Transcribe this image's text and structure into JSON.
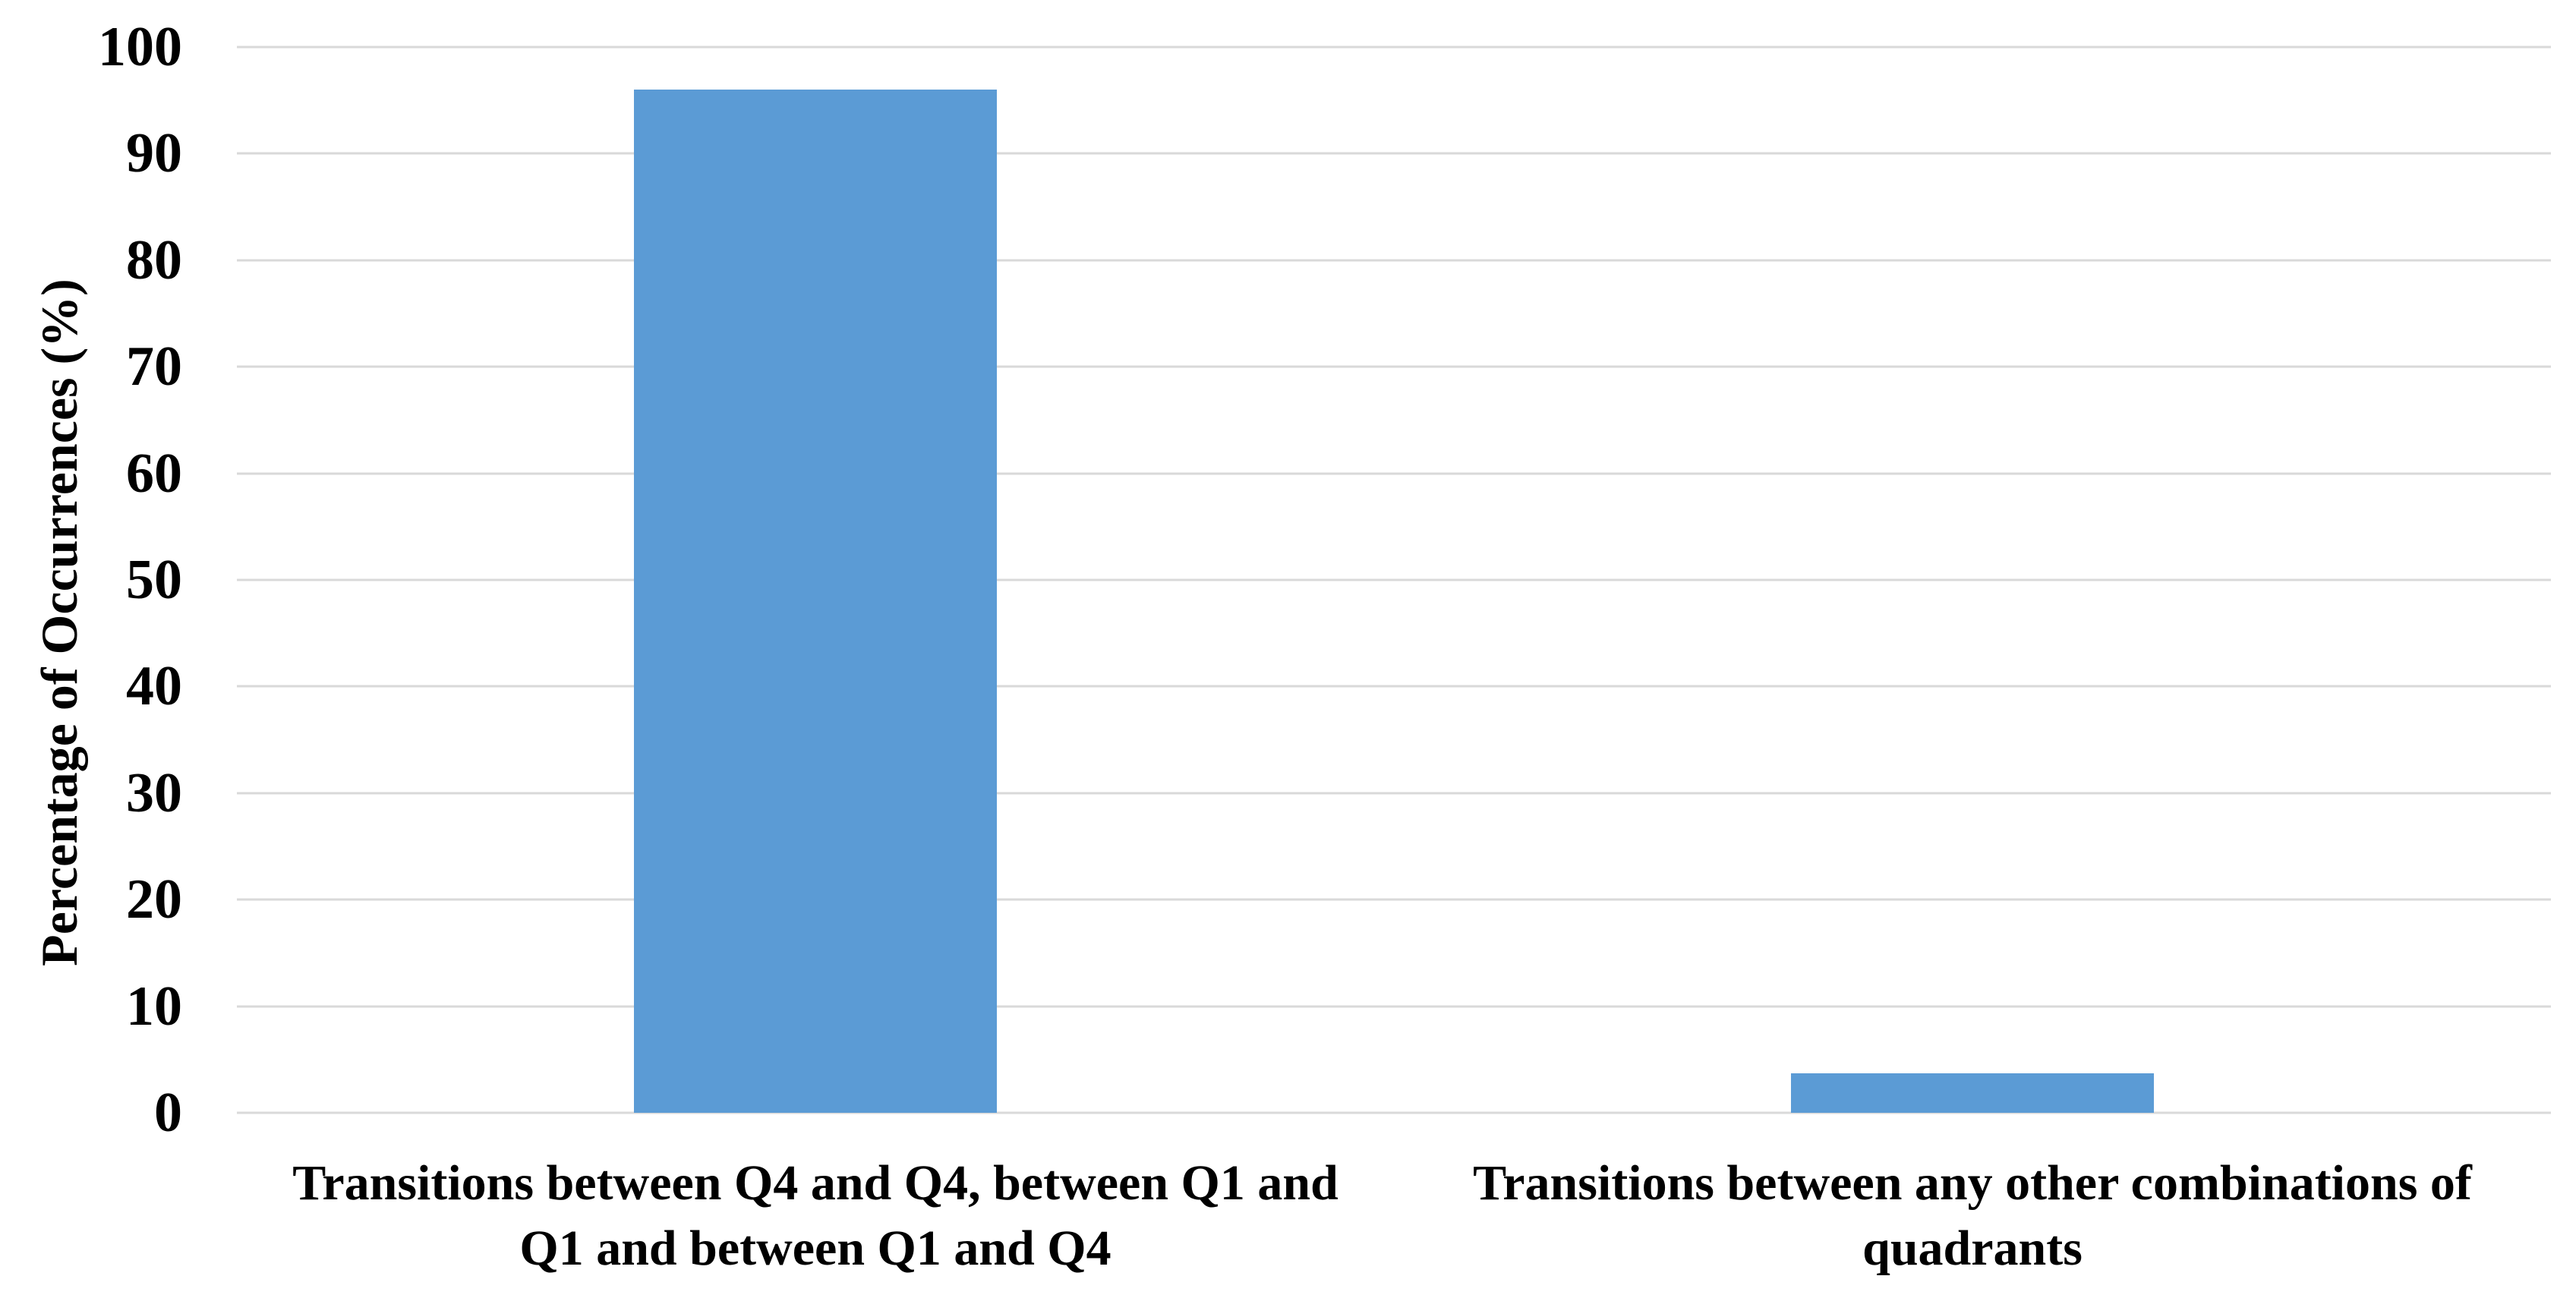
{
  "chart_data": {
    "type": "bar",
    "title": "",
    "xlabel": "",
    "ylabel": "Percentage of Occurrences (%)",
    "categories": [
      "Transitions between Q4 and Q4, between Q1 and Q1 and between Q1 and Q4",
      "Transitions between any other combinations of quadrants"
    ],
    "values": [
      96,
      3.7
    ],
    "ylim": [
      0,
      100
    ],
    "yticks": [
      0,
      10,
      20,
      30,
      40,
      50,
      60,
      70,
      80,
      90,
      100
    ],
    "grid": "horizontal",
    "legend_position": "none",
    "colors": {
      "bar": "#5B9BD5",
      "gridline": "#D9D9D9",
      "text": "#000000",
      "background": "#FFFFFF"
    }
  }
}
